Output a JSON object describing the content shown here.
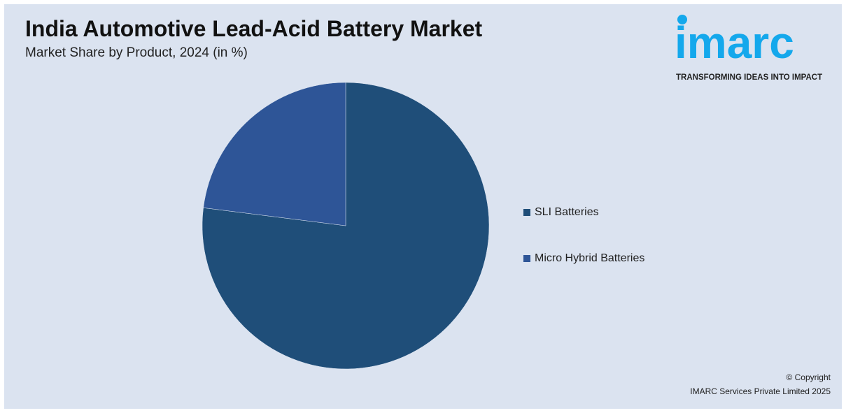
{
  "logo": {
    "word": "imarc",
    "tagline": "TRANSFORMING IDEAS INTO IMPACT"
  },
  "copyright": {
    "line1": "© Copyright",
    "line2": "IMARC Services Private Limited 2025"
  },
  "chart_data": {
    "type": "pie",
    "title": "India Automotive Lead-Acid Battery Market",
    "subtitle": "Market Share by Product, 2024 (in %)",
    "categories": [
      "SLI Batteries",
      "Micro Hybrid Batteries"
    ],
    "values": [
      77,
      23
    ],
    "colors": [
      "#1f4e79",
      "#2e5597"
    ],
    "legend_position": "right",
    "data_labels": false
  }
}
